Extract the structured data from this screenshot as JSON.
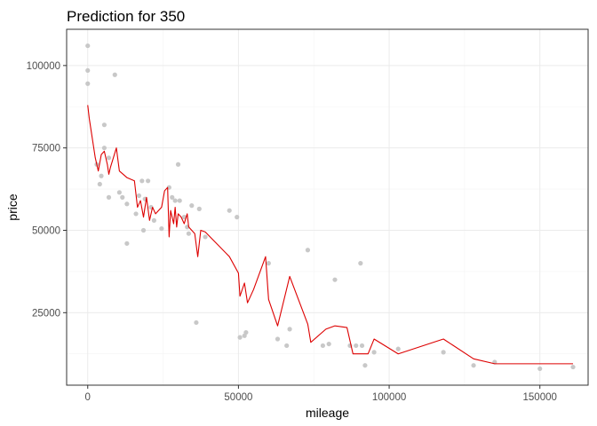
{
  "chart_data": {
    "type": "scatter",
    "title": "Prediction for 350",
    "xlabel": "mileage",
    "ylabel": "price",
    "xlim": [
      -7000,
      166000
    ],
    "ylim": [
      3000,
      111000
    ],
    "x_ticks": [
      0,
      50000,
      100000,
      150000
    ],
    "x_tick_labels": [
      "0",
      "50000",
      "100000",
      "150000"
    ],
    "y_ticks": [
      25000,
      50000,
      75000,
      100000
    ],
    "y_tick_labels": [
      "25000",
      "50000",
      "75000",
      "100000"
    ],
    "grid": true,
    "legend": "none",
    "point_color": "#c8c8c8",
    "line_color": "#dd0000",
    "points": [
      [
        0,
        106000
      ],
      [
        0,
        98500
      ],
      [
        0,
        94500
      ],
      [
        9000,
        97200
      ],
      [
        5500,
        82000
      ],
      [
        3000,
        70000
      ],
      [
        4000,
        64000
      ],
      [
        4500,
        66500
      ],
      [
        5500,
        75000
      ],
      [
        7000,
        72000
      ],
      [
        7000,
        60000
      ],
      [
        10500,
        61500
      ],
      [
        11500,
        60000
      ],
      [
        13000,
        58000
      ],
      [
        13000,
        46000
      ],
      [
        16000,
        55000
      ],
      [
        17000,
        60500
      ],
      [
        18000,
        65000
      ],
      [
        19000,
        59500
      ],
      [
        20000,
        65000
      ],
      [
        18500,
        50000
      ],
      [
        21000,
        57000
      ],
      [
        22000,
        53000
      ],
      [
        24500,
        50500
      ],
      [
        27000,
        63000
      ],
      [
        28000,
        60000
      ],
      [
        29000,
        59000
      ],
      [
        30000,
        70000
      ],
      [
        30500,
        59000
      ],
      [
        32000,
        54000
      ],
      [
        33000,
        51000
      ],
      [
        33500,
        49000
      ],
      [
        34500,
        57500
      ],
      [
        36000,
        22000
      ],
      [
        37000,
        56500
      ],
      [
        39000,
        48000
      ],
      [
        47000,
        56000
      ],
      [
        49500,
        54000
      ],
      [
        50500,
        17500
      ],
      [
        52000,
        18000
      ],
      [
        52500,
        19000
      ],
      [
        60000,
        40000
      ],
      [
        63000,
        17000
      ],
      [
        66000,
        15000
      ],
      [
        67000,
        20000
      ],
      [
        73000,
        44000
      ],
      [
        78000,
        15000
      ],
      [
        80000,
        15500
      ],
      [
        82000,
        35000
      ],
      [
        87000,
        15000
      ],
      [
        89000,
        15000
      ],
      [
        90500,
        40000
      ],
      [
        91000,
        15000
      ],
      [
        92000,
        9000
      ],
      [
        95000,
        13000
      ],
      [
        103000,
        14000
      ],
      [
        118000,
        13000
      ],
      [
        128000,
        9000
      ],
      [
        135000,
        10000
      ],
      [
        150000,
        8000
      ],
      [
        161000,
        8500
      ]
    ],
    "series": [
      {
        "x": [
          0,
          500,
          1500,
          2500,
          3500,
          4500,
          5500,
          6500,
          7000,
          7500,
          9500,
          10500,
          13000,
          15500,
          16500,
          17500,
          18500,
          19500,
          20500,
          21500,
          22500,
          24500,
          25500,
          26500,
          27000,
          27500,
          28000,
          28500,
          29000,
          29500,
          30000,
          31000,
          32000,
          33000,
          33500,
          34500,
          35500,
          36500,
          37500,
          39000,
          47000,
          50000,
          50500,
          52000,
          53000,
          55000,
          59000,
          60000,
          63000,
          67000,
          73000,
          74000,
          79000,
          82000,
          86000,
          88000,
          93000,
          95000,
          103000,
          118000,
          128000,
          135000,
          150000,
          161000
        ],
        "y": [
          88000,
          84000,
          78000,
          72000,
          68000,
          73000,
          74000,
          70000,
          67000,
          69000,
          75000,
          68000,
          66000,
          65000,
          57000,
          59000,
          54000,
          60000,
          53000,
          57000,
          55000,
          57000,
          62000,
          63000,
          48000,
          56000,
          54000,
          52000,
          57000,
          51000,
          55000,
          54000,
          52000,
          55000,
          51000,
          50000,
          49000,
          42000,
          50000,
          49500,
          42000,
          37000,
          30000,
          34000,
          28000,
          32000,
          42000,
          29000,
          21000,
          36000,
          21500,
          16000,
          20000,
          21000,
          20500,
          12500,
          12500,
          17000,
          12500,
          17000,
          11000,
          9500,
          9500,
          9500
        ]
      }
    ]
  }
}
